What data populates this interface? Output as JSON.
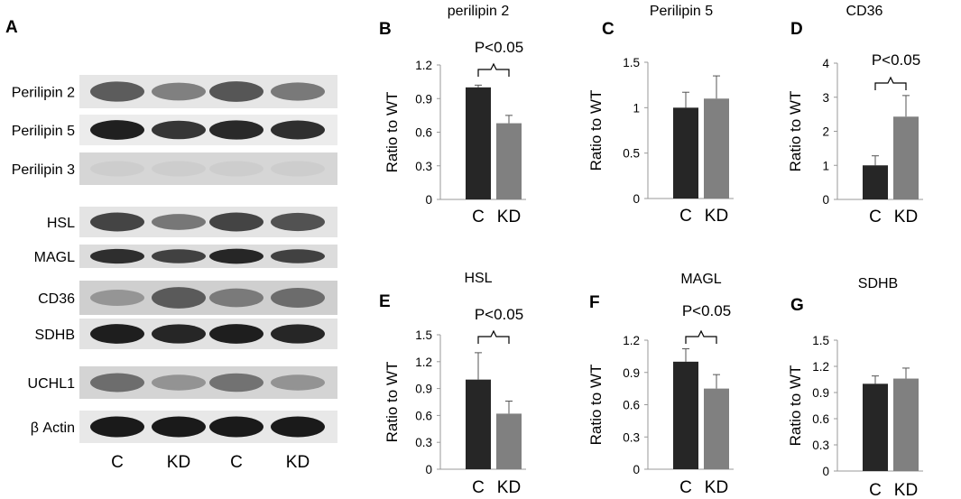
{
  "blot": {
    "letter": "A",
    "rows": [
      {
        "label": "Perilipin 2",
        "bg": "#e6e6e6",
        "band": "#4a4a4a",
        "intensity": [
          0.85,
          0.55,
          0.9,
          0.6
        ]
      },
      {
        "label": "Perilipin 5",
        "bg": "#ececec",
        "band": "#202020",
        "intensity": [
          1.0,
          0.85,
          0.95,
          0.9
        ]
      },
      {
        "label": "Perilipin 3",
        "bg": "#d6d6d6",
        "band": "#c4c4c4",
        "intensity": [
          0.3,
          0.3,
          0.3,
          0.3
        ]
      },
      {
        "label": "HSL",
        "bg": "#e4e4e4",
        "band": "#383838",
        "intensity": [
          0.9,
          0.5,
          0.9,
          0.8
        ]
      },
      {
        "label": "MAGL",
        "bg": "#dcdcdc",
        "band": "#262626",
        "intensity": [
          0.95,
          0.8,
          1.0,
          0.8
        ]
      },
      {
        "label": "CD36",
        "bg": "#cfcfcf",
        "band": "#555555",
        "intensity": [
          0.3,
          0.95,
          0.6,
          0.75
        ]
      },
      {
        "label": "SDHB",
        "bg": "#e2e2e2",
        "band": "#1e1e1e",
        "intensity": [
          1.0,
          0.95,
          1.0,
          0.95
        ]
      },
      {
        "label": "UCHL1",
        "bg": "#d4d4d4",
        "band": "#555555",
        "intensity": [
          0.75,
          0.35,
          0.7,
          0.35
        ]
      },
      {
        "label": "β Actin",
        "bg": "#e8e8e8",
        "band": "#1a1a1a",
        "intensity": [
          1.0,
          1.0,
          1.0,
          1.0
        ]
      }
    ],
    "lanes": [
      "C",
      "KD",
      "C",
      "KD"
    ]
  },
  "chart_data": [
    {
      "letter": "B",
      "type": "bar",
      "title": "perilipin 2",
      "ylabel": "Ratio to WT",
      "categories": [
        "C",
        "KD"
      ],
      "values": [
        1.0,
        0.68
      ],
      "errors": [
        0.02,
        0.07
      ],
      "ylim": [
        0,
        1.2
      ],
      "yticks": [
        "0",
        "0.3",
        "0.6",
        "0.9",
        "1.2"
      ],
      "significance": "P<0.05",
      "bar_colors": [
        "#262626",
        "#808080"
      ]
    },
    {
      "letter": "C",
      "type": "bar",
      "title": "Perilipin 5",
      "ylabel": "Ratio to WT",
      "categories": [
        "C",
        "KD"
      ],
      "values": [
        1.0,
        1.1
      ],
      "errors": [
        0.17,
        0.25
      ],
      "ylim": [
        0,
        1.5
      ],
      "yticks": [
        "0",
        "0.5",
        "1",
        "1.5"
      ],
      "significance": "",
      "bar_colors": [
        "#262626",
        "#808080"
      ]
    },
    {
      "letter": "D",
      "type": "bar",
      "title": "CD36",
      "ylabel": "Ratio to WT",
      "categories": [
        "C",
        "KD"
      ],
      "values": [
        1.0,
        2.43
      ],
      "errors": [
        0.28,
        0.62
      ],
      "ylim": [
        0,
        4
      ],
      "yticks": [
        "0",
        "1",
        "2",
        "3",
        "4"
      ],
      "significance": "P<0.05",
      "bar_colors": [
        "#262626",
        "#808080"
      ]
    },
    {
      "letter": "E",
      "type": "bar",
      "title": "HSL",
      "ylabel": "Ratio to WT",
      "categories": [
        "C",
        "KD"
      ],
      "values": [
        1.0,
        0.62
      ],
      "errors": [
        0.3,
        0.14
      ],
      "ylim": [
        0,
        1.5
      ],
      "yticks": [
        "0",
        "0.3",
        "0.6",
        "0.9",
        "1.2",
        "1.5"
      ],
      "significance": "P<0.05",
      "bar_colors": [
        "#262626",
        "#808080"
      ]
    },
    {
      "letter": "F",
      "type": "bar",
      "title": "MAGL",
      "ylabel": "Ratio to WT",
      "categories": [
        "C",
        "KD"
      ],
      "values": [
        1.0,
        0.75
      ],
      "errors": [
        0.12,
        0.13
      ],
      "ylim": [
        0,
        1.2
      ],
      "yticks": [
        "0",
        "0.3",
        "0.6",
        "0.9",
        "1.2"
      ],
      "significance": "P<0.05",
      "bar_colors": [
        "#262626",
        "#808080"
      ]
    },
    {
      "letter": "G",
      "type": "bar",
      "title": "SDHB",
      "ylabel": "Ratio to WT",
      "categories": [
        "C",
        "KD"
      ],
      "values": [
        1.0,
        1.06
      ],
      "errors": [
        0.09,
        0.12
      ],
      "ylim": [
        0,
        1.5
      ],
      "yticks": [
        "0",
        "0.3",
        "0.6",
        "0.9",
        "1.2",
        "1.5"
      ],
      "significance": "",
      "bar_colors": [
        "#262626",
        "#808080"
      ]
    }
  ]
}
